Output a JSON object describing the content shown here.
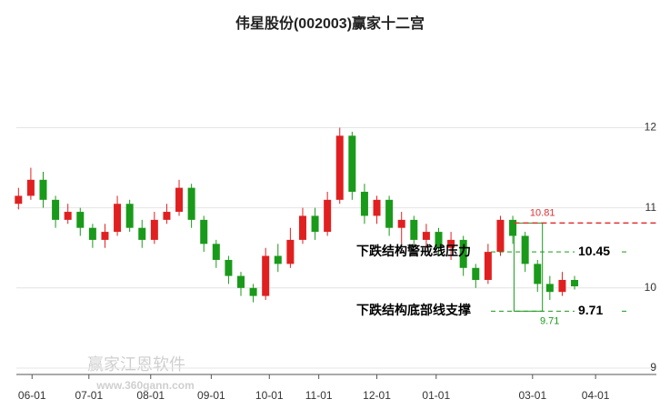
{
  "chart_data": {
    "type": "candlestick",
    "title": "伟星股份(002003)赢家十二宫",
    "up_color": "#e02020",
    "down_color": "#1a9a1a",
    "xlim": [
      -1.2,
      50
    ],
    "ylim": [
      8.92,
      12.97
    ],
    "yticks": [
      9,
      10,
      11,
      12
    ],
    "xticks": [
      {
        "value": 1.1,
        "label": "06-01"
      },
      {
        "value": 5.7,
        "label": "07-01"
      },
      {
        "value": 10.7,
        "label": "08-01"
      },
      {
        "value": 15.6,
        "label": "09-01"
      },
      {
        "value": 20.3,
        "label": "10-01"
      },
      {
        "value": 24.3,
        "label": "11-01"
      },
      {
        "value": 29,
        "label": "12-01"
      },
      {
        "value": 33.8,
        "label": "01-01"
      },
      {
        "value": 41.6,
        "label": "03-01"
      },
      {
        "value": 46.7,
        "label": "04-01"
      }
    ],
    "x": [
      0,
      1,
      2,
      3,
      4,
      5,
      6,
      7,
      8,
      9,
      10,
      11,
      12,
      13,
      14,
      15,
      16,
      17,
      18,
      19,
      20,
      21,
      22,
      23,
      24,
      25,
      26,
      27,
      28,
      29,
      30,
      31,
      32,
      33,
      34,
      35,
      36,
      37,
      38,
      39,
      40,
      41,
      42,
      43,
      44,
      45
    ],
    "open": [
      11.05,
      11.15,
      11.35,
      11.1,
      10.85,
      10.95,
      10.75,
      10.6,
      10.7,
      11.05,
      10.75,
      10.6,
      10.85,
      10.95,
      11.25,
      10.85,
      10.55,
      10.35,
      10.15,
      10.0,
      9.9,
      10.4,
      10.3,
      10.6,
      10.9,
      10.7,
      11.1,
      11.9,
      11.2,
      10.9,
      11.1,
      10.75,
      10.85,
      10.6,
      10.7,
      10.5,
      10.6,
      10.25,
      10.1,
      10.45,
      10.85,
      10.65,
      10.3,
      10.05,
      9.95,
      10.1
    ],
    "close": [
      11.15,
      11.35,
      11.1,
      10.85,
      10.95,
      10.75,
      10.6,
      10.7,
      11.05,
      10.75,
      10.6,
      10.85,
      10.95,
      11.25,
      10.85,
      10.55,
      10.35,
      10.15,
      10.0,
      9.9,
      10.4,
      10.3,
      10.6,
      10.9,
      10.7,
      11.1,
      11.9,
      11.2,
      10.9,
      11.1,
      10.75,
      10.85,
      10.6,
      10.7,
      10.5,
      10.6,
      10.25,
      10.1,
      10.45,
      10.85,
      10.65,
      10.3,
      10.05,
      9.95,
      10.1,
      10.02
    ],
    "high": [
      11.25,
      11.5,
      11.45,
      11.15,
      11.05,
      11.0,
      10.8,
      10.8,
      11.15,
      11.1,
      10.85,
      10.95,
      11.05,
      11.35,
      11.3,
      10.9,
      10.6,
      10.4,
      10.2,
      10.05,
      10.5,
      10.55,
      10.75,
      11.0,
      11.0,
      11.2,
      12.0,
      11.95,
      11.3,
      11.15,
      11.15,
      10.95,
      10.9,
      10.8,
      10.75,
      10.7,
      10.65,
      10.3,
      10.55,
      10.9,
      10.9,
      10.7,
      10.35,
      10.15,
      10.2,
      10.15
    ],
    "low": [
      10.98,
      11.1,
      11.0,
      10.75,
      10.8,
      10.65,
      10.5,
      10.5,
      10.65,
      10.7,
      10.5,
      10.55,
      10.8,
      10.9,
      10.75,
      10.45,
      10.25,
      10.05,
      9.9,
      9.82,
      9.85,
      10.2,
      10.25,
      10.55,
      10.6,
      10.65,
      11.05,
      11.1,
      10.8,
      10.8,
      10.65,
      10.55,
      10.5,
      10.5,
      10.4,
      10.35,
      10.15,
      10.0,
      10.05,
      10.4,
      10.55,
      10.2,
      9.95,
      9.85,
      9.9,
      9.98
    ],
    "box": {
      "x": [
        40.1,
        42.4
      ],
      "top": 10.81,
      "bottom": 9.71
    },
    "resistance": {
      "label": "下跌结构警戒线压力",
      "value": 10.45
    },
    "support": {
      "label": "下跌结构底部线支撑",
      "value": 9.71
    },
    "watermark": [
      "赢家江恩软件",
      "www.360gann.com"
    ]
  }
}
